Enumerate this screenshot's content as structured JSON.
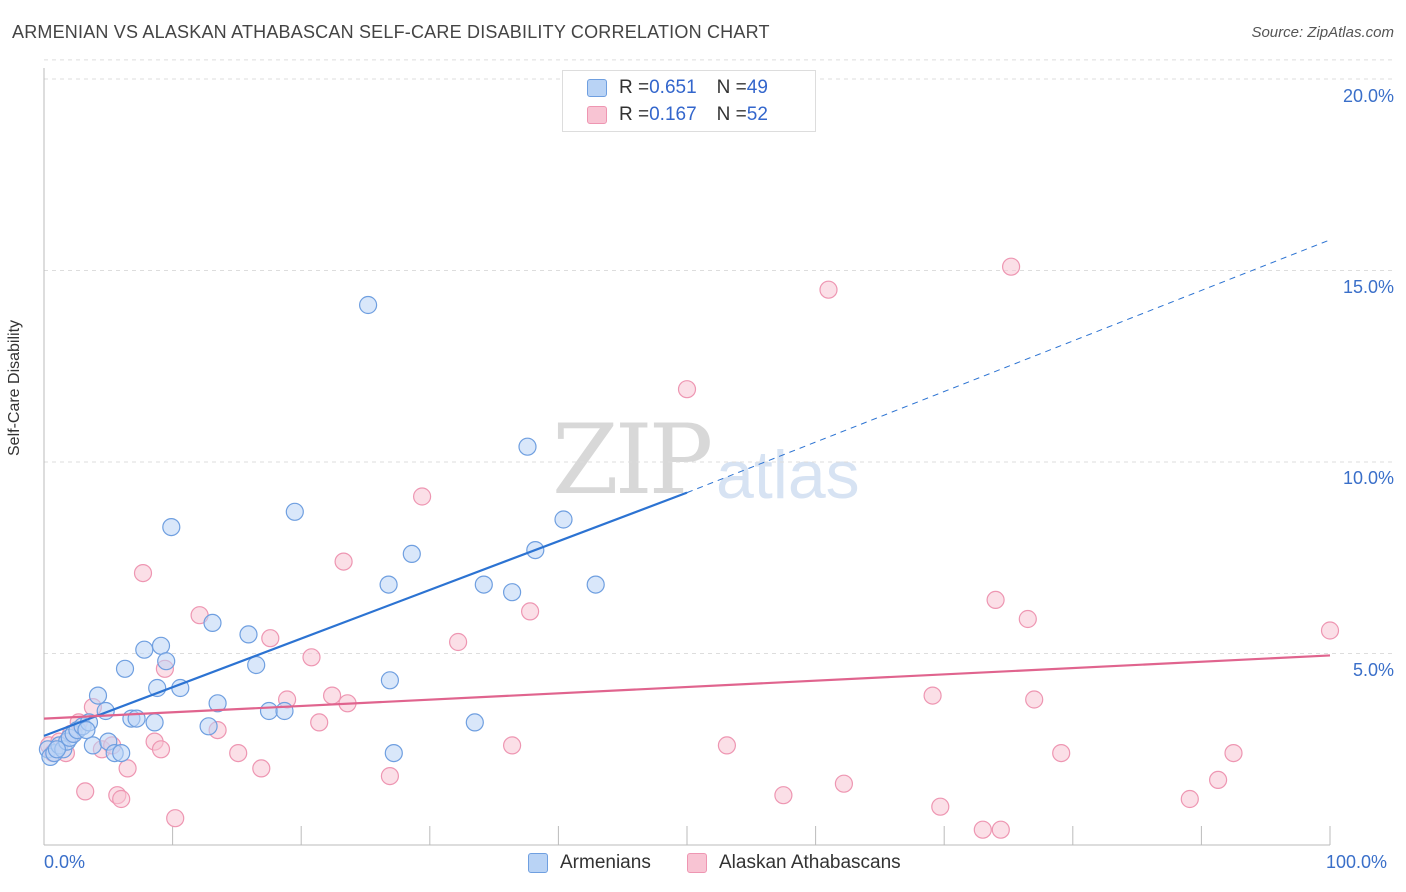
{
  "header": {
    "title": "ARMENIAN VS ALASKAN ATHABASCAN SELF-CARE DISABILITY CORRELATION CHART",
    "source": "Source: ZipAtlas.com"
  },
  "watermark": {
    "zip": "ZIP",
    "atlas": "atlas"
  },
  "legend": {
    "rows": [
      {
        "r_label": "R = ",
        "r_value": "0.651",
        "n_label": "N = ",
        "n_value": "49"
      },
      {
        "r_label": "R = ",
        "r_value": "0.167",
        "n_label": "N = ",
        "n_value": "52"
      }
    ]
  },
  "bottom_legend": [
    "Armenians",
    "Alaskan Athabascans"
  ],
  "colors": {
    "armenians_fill": "#b9d3f5",
    "armenians_stroke": "#6f9fe0",
    "armenians_line": "#2c73d2",
    "alaskan_fill": "#f8c4d3",
    "alaskan_stroke": "#ee96b2",
    "alaskan_line": "#e0648e",
    "axis_label": "#3a6fc9",
    "grid": "#dddddd"
  },
  "chart_data": {
    "type": "scatter",
    "title": "ARMENIAN VS ALASKAN ATHABASCAN SELF-CARE DISABILITY CORRELATION CHART",
    "xlabel": "",
    "ylabel": "Self-Care Disability",
    "xlim": [
      0,
      100
    ],
    "ylim": [
      0,
      20.5
    ],
    "x_tick_labels": [
      "0.0%",
      "100.0%"
    ],
    "y_ticks": [
      5,
      10,
      15,
      20
    ],
    "y_tick_labels": [
      "5.0%",
      "10.0%",
      "15.0%",
      "20.0%"
    ],
    "grid": true,
    "legend_position": "top-center",
    "series": [
      {
        "name": "Armenians",
        "r": 0.651,
        "n": 49,
        "trend": {
          "x": [
            0,
            50
          ],
          "y": [
            2.85,
            9.2
          ],
          "dashed_to": {
            "x": 100,
            "y": 15.8
          }
        },
        "points": [
          [
            0.3,
            2.5
          ],
          [
            0.5,
            2.3
          ],
          [
            0.8,
            2.4
          ],
          [
            1.2,
            2.6
          ],
          [
            1.5,
            2.5
          ],
          [
            1.8,
            2.7
          ],
          [
            2.0,
            2.8
          ],
          [
            2.3,
            2.9
          ],
          [
            2.6,
            3.0
          ],
          [
            3.0,
            3.1
          ],
          [
            3.5,
            3.2
          ],
          [
            3.8,
            2.6
          ],
          [
            4.2,
            3.9
          ],
          [
            4.8,
            3.5
          ],
          [
            5.0,
            2.7
          ],
          [
            5.5,
            2.4
          ],
          [
            6.0,
            2.4
          ],
          [
            6.3,
            4.6
          ],
          [
            6.8,
            3.3
          ],
          [
            7.2,
            3.3
          ],
          [
            7.8,
            5.1
          ],
          [
            8.6,
            3.2
          ],
          [
            8.8,
            4.1
          ],
          [
            9.1,
            5.2
          ],
          [
            9.5,
            4.8
          ],
          [
            9.9,
            8.3
          ],
          [
            10.6,
            4.1
          ],
          [
            12.8,
            3.1
          ],
          [
            13.1,
            5.8
          ],
          [
            13.5,
            3.7
          ],
          [
            15.9,
            5.5
          ],
          [
            16.5,
            4.7
          ],
          [
            17.5,
            3.5
          ],
          [
            18.7,
            3.5
          ],
          [
            19.5,
            8.7
          ],
          [
            25.2,
            14.1
          ],
          [
            26.9,
            4.3
          ],
          [
            27.2,
            2.4
          ],
          [
            28.6,
            7.6
          ],
          [
            26.8,
            6.8
          ],
          [
            33.5,
            3.2
          ],
          [
            34.2,
            6.8
          ],
          [
            36.4,
            6.6
          ],
          [
            37.6,
            10.4
          ],
          [
            38.2,
            7.7
          ],
          [
            40.4,
            8.5
          ],
          [
            42.9,
            6.8
          ],
          [
            3.3,
            3.0
          ],
          [
            1.0,
            2.5
          ]
        ]
      },
      {
        "name": "Alaskan Athabascans",
        "r": 0.167,
        "n": 52,
        "trend": {
          "x": [
            0,
            100
          ],
          "y": [
            3.3,
            4.95
          ]
        },
        "points": [
          [
            0.4,
            2.6
          ],
          [
            0.7,
            2.4
          ],
          [
            1.2,
            2.7
          ],
          [
            1.7,
            2.4
          ],
          [
            2.1,
            2.9
          ],
          [
            2.7,
            3.2
          ],
          [
            3.2,
            1.4
          ],
          [
            3.8,
            3.6
          ],
          [
            4.5,
            2.5
          ],
          [
            5.3,
            2.6
          ],
          [
            5.7,
            1.3
          ],
          [
            6.0,
            1.2
          ],
          [
            6.5,
            2.0
          ],
          [
            7.7,
            7.1
          ],
          [
            8.6,
            2.7
          ],
          [
            9.1,
            2.5
          ],
          [
            9.4,
            4.6
          ],
          [
            10.2,
            0.7
          ],
          [
            12.1,
            6.0
          ],
          [
            13.5,
            3.0
          ],
          [
            15.1,
            2.4
          ],
          [
            16.9,
            2.0
          ],
          [
            17.6,
            5.4
          ],
          [
            18.9,
            3.8
          ],
          [
            20.8,
            4.9
          ],
          [
            21.4,
            3.2
          ],
          [
            22.4,
            3.9
          ],
          [
            23.3,
            7.4
          ],
          [
            23.6,
            3.7
          ],
          [
            26.9,
            1.8
          ],
          [
            29.4,
            9.1
          ],
          [
            32.2,
            5.3
          ],
          [
            36.4,
            2.6
          ],
          [
            37.8,
            6.1
          ],
          [
            50.0,
            11.9
          ],
          [
            53.1,
            2.6
          ],
          [
            57.5,
            1.3
          ],
          [
            61.0,
            14.5
          ],
          [
            62.2,
            1.6
          ],
          [
            69.1,
            3.9
          ],
          [
            69.7,
            1.0
          ],
          [
            73.0,
            0.4
          ],
          [
            74.0,
            6.4
          ],
          [
            74.4,
            0.4
          ],
          [
            75.2,
            15.1
          ],
          [
            76.5,
            5.9
          ],
          [
            77.0,
            3.8
          ],
          [
            79.1,
            2.4
          ],
          [
            89.1,
            1.2
          ],
          [
            91.3,
            1.7
          ],
          [
            92.5,
            2.4
          ],
          [
            100.0,
            5.6
          ]
        ]
      }
    ]
  }
}
